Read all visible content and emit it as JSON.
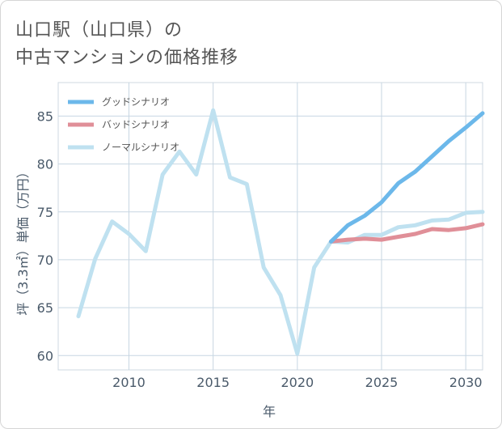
{
  "title": {
    "line1": "山口駅（山口県）の",
    "line2": "中古マンションの価格推移"
  },
  "chart_data": {
    "type": "line",
    "xlabel": "年",
    "ylabel": "坪（3.3㎡）単価（万円）",
    "xlim": [
      2005.8,
      2031
    ],
    "ylim": [
      58.5,
      88.5
    ],
    "xticks": [
      2010,
      2015,
      2020,
      2025,
      2030
    ],
    "yticks": [
      60,
      65,
      70,
      75,
      80,
      85
    ],
    "grid": true,
    "legend_position": "top-left",
    "series": [
      {
        "name": "グッドシナリオ",
        "color": "#6cb8ea",
        "x": [
          2022,
          2023,
          2024,
          2025,
          2026,
          2027,
          2028,
          2029,
          2030,
          2031
        ],
        "values": [
          71.9,
          73.6,
          74.6,
          76.0,
          78.0,
          79.2,
          80.8,
          82.4,
          83.8,
          85.3
        ]
      },
      {
        "name": "バッドシナリオ",
        "color": "#e08f98",
        "x": [
          2022,
          2023,
          2024,
          2025,
          2026,
          2027,
          2028,
          2029,
          2030,
          2031
        ],
        "values": [
          71.9,
          72.1,
          72.2,
          72.1,
          72.4,
          72.7,
          73.2,
          73.1,
          73.3,
          73.7
        ]
      },
      {
        "name": "ノーマルシナリオ",
        "color": "#bfe1f0",
        "x": [
          2007,
          2008,
          2009,
          2010,
          2011,
          2012,
          2013,
          2014,
          2015,
          2016,
          2017,
          2018,
          2019,
          2020,
          2021,
          2022,
          2023,
          2024,
          2025,
          2026,
          2027,
          2028,
          2029,
          2030,
          2031
        ],
        "values": [
          64.1,
          70.1,
          74.0,
          72.7,
          70.9,
          78.9,
          81.3,
          78.9,
          85.6,
          78.6,
          77.9,
          69.2,
          66.3,
          60.2,
          69.2,
          71.9,
          71.8,
          72.6,
          72.6,
          73.4,
          73.6,
          74.1,
          74.2,
          74.9,
          75.0
        ]
      }
    ]
  }
}
